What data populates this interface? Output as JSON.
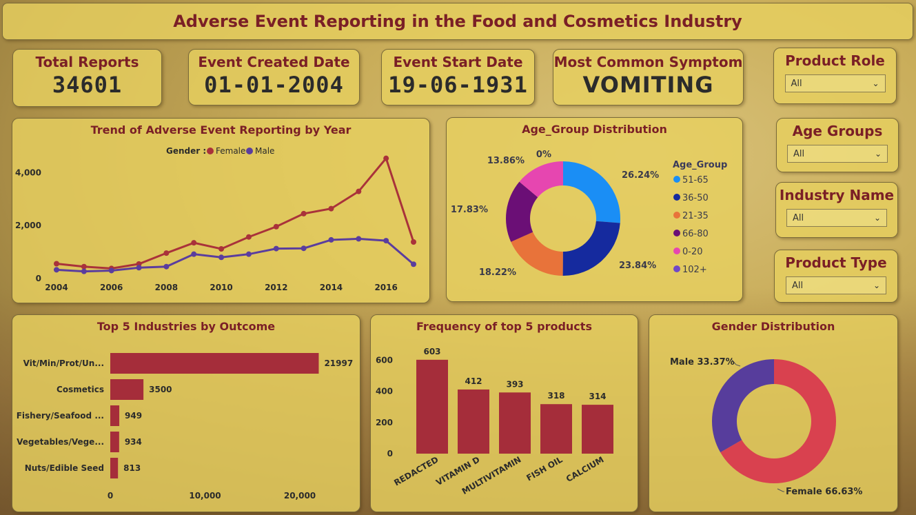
{
  "title": "Adverse Event Reporting in the Food and Cosmetics Industry",
  "kpis": [
    {
      "label": "Total Reports",
      "value": "34601"
    },
    {
      "label": "Event Created Date",
      "value": "01-01-2004"
    },
    {
      "label": "Event Start Date",
      "value": "19-06-1931"
    },
    {
      "label": "Most Common Symptom",
      "value": "VOMITING"
    }
  ],
  "slicers": [
    {
      "label": "Product Role",
      "value": "All"
    },
    {
      "label": "Age Groups",
      "value": "All"
    },
    {
      "label": "Industry Name",
      "value": "All"
    },
    {
      "label": "Product Type",
      "value": "All"
    }
  ],
  "colors": {
    "female": "#a9323a",
    "male": "#5a3d9e",
    "bar": "#a52d3a",
    "gender_female": "#d9414f",
    "gender_male": "#573d9c"
  },
  "chart_data": [
    {
      "type": "line",
      "title": "Trend of Adverse Event Reporting by Year",
      "legend_title": "Gender :",
      "legend_position": "top",
      "x": [
        2004,
        2005,
        2006,
        2007,
        2008,
        2009,
        2010,
        2011,
        2012,
        2013,
        2014,
        2015,
        2016,
        2017
      ],
      "x_ticks": [
        "2004",
        "2006",
        "2008",
        "2010",
        "2012",
        "2014",
        "2016"
      ],
      "y_ticks": [
        "0",
        "2,000",
        "4,000"
      ],
      "ylim": [
        0,
        5000
      ],
      "series": [
        {
          "name": "Female",
          "color": "#a9323a",
          "values": [
            560,
            450,
            380,
            550,
            960,
            1350,
            1120,
            1570,
            1960,
            2450,
            2640,
            3290,
            4540,
            1380
          ]
        },
        {
          "name": "Male",
          "color": "#5a3d9e",
          "values": [
            330,
            270,
            300,
            410,
            450,
            920,
            800,
            920,
            1130,
            1140,
            1460,
            1500,
            1430,
            540
          ]
        }
      ]
    },
    {
      "type": "pie",
      "title": "Age_Group Distribution",
      "legend_title": "Age_Group",
      "legend_position": "right",
      "slices": [
        {
          "label": "51-65",
          "value": 26.24,
          "text": "26.24%",
          "color": "#1a8ef5"
        },
        {
          "label": "36-50",
          "value": 23.84,
          "text": "23.84%",
          "color": "#152a9e"
        },
        {
          "label": "21-35",
          "value": 18.22,
          "text": "18.22%",
          "color": "#e8733a"
        },
        {
          "label": "66-80",
          "value": 17.83,
          "text": "17.83%",
          "color": "#6b0f76"
        },
        {
          "label": "0-20",
          "value": 13.86,
          "text": "13.86%",
          "color": "#e646b0"
        },
        {
          "label": "102+",
          "value": 0.01,
          "text": "0%",
          "color": "#7048c8"
        }
      ]
    },
    {
      "type": "bar",
      "orientation": "horizontal",
      "title": "Top 5 Industries by Outcome",
      "categories": [
        "Vit/Min/Prot/Un...",
        "Cosmetics",
        "Fishery/Seafood ...",
        "Vegetables/Vege...",
        "Nuts/Edible Seed"
      ],
      "values": [
        21997,
        3500,
        949,
        934,
        813
      ],
      "x_ticks": [
        "0",
        "10,000",
        "20,000"
      ],
      "xlim": [
        0,
        24000
      ]
    },
    {
      "type": "bar",
      "orientation": "vertical",
      "title": "Frequency of top 5 products",
      "categories": [
        "REDACTED",
        "VITAMIN D",
        "MULTIVITAMIN",
        "FISH OIL",
        "CALCIUM"
      ],
      "values": [
        603,
        412,
        393,
        318,
        314
      ],
      "y_ticks": [
        "0",
        "200",
        "400",
        "600"
      ],
      "ylim": [
        0,
        620
      ]
    },
    {
      "type": "pie",
      "title": "Gender Distribution",
      "slices": [
        {
          "label": "Female",
          "value": 66.63,
          "text": "Female 66.63%",
          "color": "#d9414f"
        },
        {
          "label": "Male",
          "value": 33.37,
          "text": "Male 33.37%",
          "color": "#573d9c"
        }
      ]
    }
  ]
}
